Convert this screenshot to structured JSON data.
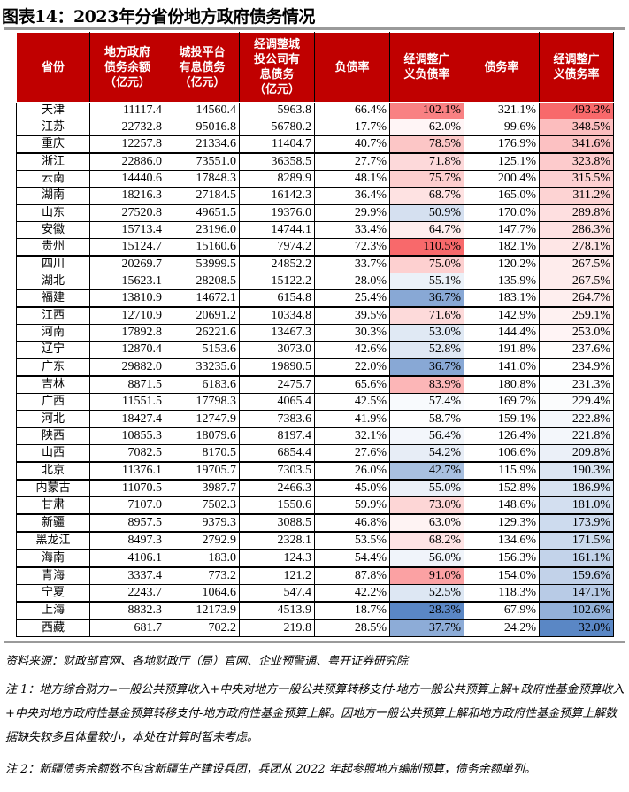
{
  "title": "图表14：2023年分省份地方政府债务情况",
  "table": {
    "headers": [
      "省份",
      "地方政府\n债务余额\n（亿元）",
      "城投平台\n有息债务\n（亿元）",
      "经调整城\n投公司有\n息债务\n（亿元）",
      "负债率",
      "经调整广\n义负债率",
      "债务率",
      "经调整广\n义债务率"
    ],
    "rows": [
      [
        "天津",
        "11117.4",
        "14560.4",
        "5963.8",
        "66.4%",
        "102.1%",
        "321.1%",
        "493.3%"
      ],
      [
        "江苏",
        "22732.8",
        "95016.8",
        "56780.2",
        "17.7%",
        "62.0%",
        "99.6%",
        "348.5%"
      ],
      [
        "重庆",
        "12257.8",
        "21334.6",
        "11404.7",
        "40.7%",
        "78.5%",
        "176.9%",
        "341.6%"
      ],
      [
        "浙江",
        "22886.0",
        "73551.0",
        "36358.5",
        "27.7%",
        "71.8%",
        "125.1%",
        "323.8%"
      ],
      [
        "云南",
        "14440.6",
        "17848.3",
        "8289.9",
        "48.1%",
        "75.7%",
        "200.4%",
        "315.5%"
      ],
      [
        "湖南",
        "18216.3",
        "27184.5",
        "16142.3",
        "36.4%",
        "68.7%",
        "165.0%",
        "311.2%"
      ],
      [
        "山东",
        "27520.8",
        "49651.5",
        "19376.0",
        "29.9%",
        "50.9%",
        "170.0%",
        "289.8%"
      ],
      [
        "安徽",
        "15713.4",
        "23196.0",
        "14744.1",
        "33.4%",
        "64.7%",
        "147.7%",
        "286.3%"
      ],
      [
        "贵州",
        "15124.7",
        "15160.6",
        "7974.2",
        "72.3%",
        "110.5%",
        "182.1%",
        "278.1%"
      ],
      [
        "四川",
        "20269.7",
        "53999.5",
        "24852.2",
        "33.7%",
        "75.0%",
        "120.2%",
        "267.5%"
      ],
      [
        "湖北",
        "15623.1",
        "28208.5",
        "15122.2",
        "28.0%",
        "55.1%",
        "135.9%",
        "267.5%"
      ],
      [
        "福建",
        "13810.9",
        "14672.1",
        "6154.8",
        "25.4%",
        "36.7%",
        "183.1%",
        "264.7%"
      ],
      [
        "江西",
        "12710.9",
        "20691.2",
        "10334.8",
        "39.5%",
        "71.6%",
        "142.9%",
        "259.1%"
      ],
      [
        "河南",
        "17892.8",
        "26221.6",
        "13467.3",
        "30.3%",
        "53.0%",
        "144.4%",
        "253.0%"
      ],
      [
        "辽宁",
        "12870.4",
        "5153.6",
        "3073.0",
        "42.6%",
        "52.8%",
        "191.8%",
        "237.6%"
      ],
      [
        "广东",
        "29882.0",
        "33235.6",
        "19890.5",
        "22.0%",
        "36.7%",
        "141.0%",
        "234.9%"
      ],
      [
        "吉林",
        "8871.5",
        "6183.6",
        "2475.7",
        "65.6%",
        "83.9%",
        "180.8%",
        "231.3%"
      ],
      [
        "广西",
        "11551.5",
        "17798.3",
        "4065.4",
        "42.5%",
        "57.4%",
        "169.7%",
        "229.4%"
      ],
      [
        "河北",
        "18427.4",
        "12747.9",
        "7383.6",
        "41.9%",
        "58.7%",
        "159.1%",
        "222.8%"
      ],
      [
        "陕西",
        "10855.3",
        "18079.6",
        "8197.4",
        "32.1%",
        "56.4%",
        "126.4%",
        "221.8%"
      ],
      [
        "山西",
        "7082.5",
        "8170.5",
        "6854.4",
        "27.6%",
        "54.2%",
        "106.6%",
        "209.8%"
      ],
      [
        "北京",
        "11376.1",
        "19705.7",
        "7303.5",
        "26.0%",
        "42.7%",
        "115.9%",
        "190.3%"
      ],
      [
        "内蒙古",
        "11070.5",
        "3987.7",
        "2466.3",
        "45.0%",
        "55.0%",
        "152.8%",
        "186.9%"
      ],
      [
        "甘肃",
        "7107.0",
        "7502.3",
        "1550.6",
        "59.9%",
        "73.0%",
        "148.6%",
        "181.0%"
      ],
      [
        "新疆",
        "8957.5",
        "9379.3",
        "3088.5",
        "46.8%",
        "63.0%",
        "129.3%",
        "173.9%"
      ],
      [
        "黑龙江",
        "8497.3",
        "2792.9",
        "2328.1",
        "53.5%",
        "68.2%",
        "134.6%",
        "171.5%"
      ],
      [
        "海南",
        "4106.1",
        "183.0",
        "124.3",
        "54.4%",
        "56.0%",
        "156.3%",
        "161.1%"
      ],
      [
        "青海",
        "3337.4",
        "773.2",
        "121.2",
        "87.8%",
        "91.0%",
        "154.0%",
        "159.6%"
      ],
      [
        "宁夏",
        "2243.7",
        "1064.6",
        "547.4",
        "42.2%",
        "52.5%",
        "118.3%",
        "147.1%"
      ],
      [
        "上海",
        "8832.3",
        "12173.9",
        "4513.9",
        "18.7%",
        "28.3%",
        "67.9%",
        "102.6%"
      ],
      [
        "西藏",
        "681.7",
        "702.2",
        "219.8",
        "28.5%",
        "37.7%",
        "24.2%",
        "32.0%"
      ]
    ]
  },
  "heatmap": {
    "low_color": "#5a87c5",
    "mid_color": "#ffffff",
    "high_color": "#f8696b",
    "columns": [
      5,
      7
    ]
  },
  "source": "资料来源：财政部官网、各地财政厅（局）官网、企业预警通、粤开证券研究院",
  "note1": "注 1：地方综合财力=一般公共预算收入+中央对地方一般公共预算转移支付-地方一般公共预算上解+政府性基金预算收入+中央对地方政府性基金预算转移支付-地方政府性基金预算上解。因地方一般公共预算上解和地方政府性基金预算上解数据缺失较多且体量较小，本处在计算时暂未考虑。",
  "note2": "注 2：新疆债务余额数不包含新疆生产建设兵团，兵团从 2022 年起参照地方编制预算，债务余额单列。"
}
